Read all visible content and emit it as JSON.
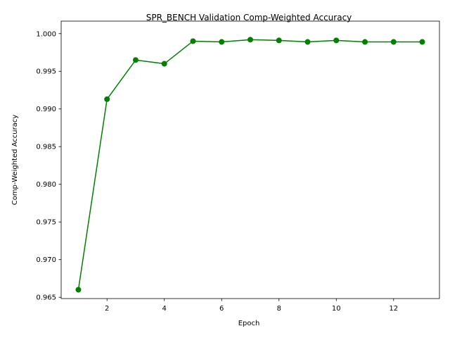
{
  "chart_data": {
    "type": "line",
    "title": "SPR_BENCH Validation Comp-Weighted Accuracy",
    "xlabel": "Epoch",
    "ylabel": "Comp-Weighted Accuracy",
    "x": [
      1,
      2,
      3,
      4,
      5,
      6,
      7,
      8,
      9,
      10,
      11,
      12,
      13
    ],
    "series": [
      {
        "color": "#008000",
        "marker": "circle",
        "values": [
          0.966,
          0.9913,
          0.9965,
          0.996,
          0.999,
          0.9989,
          0.9992,
          0.9991,
          0.9989,
          0.9991,
          0.9989,
          0.9989,
          0.9989
        ]
      }
    ],
    "xlim": [
      0.4,
      13.6
    ],
    "ylim": [
      0.96483,
      1.00166
    ],
    "xticks": [
      2,
      4,
      6,
      8,
      10,
      12
    ],
    "xtick_labels": [
      "2",
      "4",
      "6",
      "8",
      "10",
      "12"
    ],
    "yticks": [
      0.965,
      0.97,
      0.975,
      0.98,
      0.985,
      0.99,
      0.995,
      1.0
    ],
    "ytick_labels": [
      "0.965",
      "0.970",
      "0.975",
      "0.980",
      "0.985",
      "0.990",
      "0.995",
      "1.000"
    ],
    "grid": false,
    "legend": "none"
  }
}
